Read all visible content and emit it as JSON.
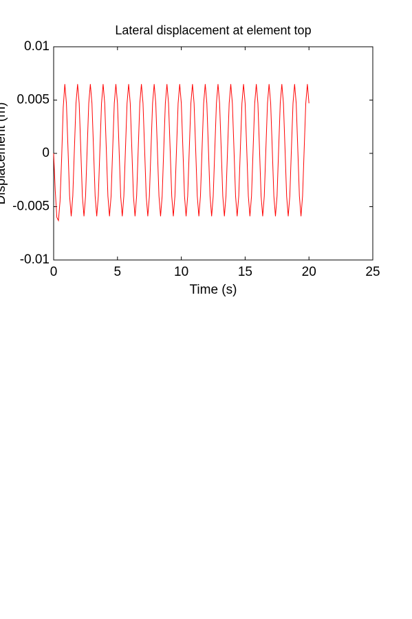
{
  "chart_data": {
    "type": "line",
    "title": "Lateral displacement at element top",
    "xlabel": "Time (s)",
    "ylabel": "Displacement (m)",
    "x": [
      0,
      0.125,
      0.25,
      0.375,
      0.5,
      0.625,
      0.75,
      0.875,
      1,
      1.125,
      1.25,
      1.375,
      1.5,
      1.625,
      1.75,
      1.875,
      2,
      2.125,
      2.25,
      2.375,
      2.5,
      2.625,
      2.75,
      2.875,
      3,
      3.125,
      3.25,
      3.375,
      3.5,
      3.625,
      3.75,
      3.875,
      4,
      4.125,
      4.25,
      4.375,
      4.5,
      4.625,
      4.75,
      4.875,
      5,
      5.125,
      5.25,
      5.375,
      5.5,
      5.625,
      5.75,
      5.875,
      6,
      6.125,
      6.25,
      6.375,
      6.5,
      6.625,
      6.75,
      6.875,
      7,
      7.125,
      7.25,
      7.375,
      7.5,
      7.625,
      7.75,
      7.875,
      8,
      8.125,
      8.25,
      8.375,
      8.5,
      8.625,
      8.75,
      8.875,
      9,
      9.125,
      9.25,
      9.375,
      9.5,
      9.625,
      9.75,
      9.875,
      10,
      10.125,
      10.25,
      10.375,
      10.5,
      10.625,
      10.75,
      10.875,
      11,
      11.125,
      11.25,
      11.375,
      11.5,
      11.625,
      11.75,
      11.875,
      12,
      12.125,
      12.25,
      12.375,
      12.5,
      12.625,
      12.75,
      12.875,
      13,
      13.125,
      13.25,
      13.375,
      13.5,
      13.625,
      13.75,
      13.875,
      14,
      14.125,
      14.25,
      14.375,
      14.5,
      14.625,
      14.75,
      14.875,
      15,
      15.125,
      15.25,
      15.375,
      15.5,
      15.625,
      15.75,
      15.875,
      16,
      16.125,
      16.25,
      16.375,
      16.5,
      16.625,
      16.75,
      16.875,
      17,
      17.125,
      17.25,
      17.375,
      17.5,
      17.625,
      17.75,
      17.875,
      18,
      18.125,
      18.25,
      18.375,
      18.5,
      18.625,
      18.75,
      18.875,
      19,
      19.125,
      19.25,
      19.375,
      19.5,
      19.625,
      19.75,
      19.875,
      20
    ],
    "values": [
      0,
      -0.0035,
      -0.006,
      -0.0063,
      -0.0045,
      -0.0005,
      0.0043,
      0.0065,
      0.0047,
      0.0004,
      -0.004,
      -0.0059,
      -0.004,
      0.0004,
      0.0047,
      0.0065,
      0.0047,
      0.0004,
      -0.004,
      -0.0059,
      -0.004,
      0.0004,
      0.0047,
      0.0065,
      0.0047,
      0.0004,
      -0.004,
      -0.0059,
      -0.004,
      0.0004,
      0.0047,
      0.0065,
      0.0047,
      0.0004,
      -0.004,
      -0.0059,
      -0.004,
      0.0004,
      0.0047,
      0.0065,
      0.0047,
      0.0004,
      -0.004,
      -0.0059,
      -0.004,
      0.0004,
      0.0047,
      0.0065,
      0.0047,
      0.0004,
      -0.004,
      -0.0059,
      -0.004,
      0.0004,
      0.0047,
      0.0065,
      0.0047,
      0.0004,
      -0.004,
      -0.0059,
      -0.004,
      0.0004,
      0.0047,
      0.0065,
      0.0047,
      0.0004,
      -0.004,
      -0.0059,
      -0.004,
      0.0004,
      0.0047,
      0.0065,
      0.0047,
      0.0004,
      -0.004,
      -0.0059,
      -0.004,
      0.0004,
      0.0047,
      0.0065,
      0.0047,
      0.0004,
      -0.004,
      -0.0059,
      -0.004,
      0.0004,
      0.0047,
      0.0065,
      0.0047,
      0.0004,
      -0.004,
      -0.0059,
      -0.004,
      0.0004,
      0.0047,
      0.0065,
      0.0047,
      0.0004,
      -0.004,
      -0.0059,
      -0.004,
      0.0004,
      0.0047,
      0.0065,
      0.0047,
      0.0004,
      -0.004,
      -0.0059,
      -0.004,
      0.0004,
      0.0047,
      0.0065,
      0.0047,
      0.0004,
      -0.004,
      -0.0059,
      -0.004,
      0.0004,
      0.0047,
      0.0065,
      0.0047,
      0.0004,
      -0.004,
      -0.0059,
      -0.004,
      0.0004,
      0.0047,
      0.0065,
      0.0047,
      0.0004,
      -0.004,
      -0.0059,
      -0.004,
      0.0004,
      0.0047,
      0.0065,
      0.0047,
      0.0004,
      -0.004,
      -0.0059,
      -0.004,
      0.0004,
      0.0047,
      0.0065,
      0.0047,
      0.0004,
      -0.004,
      -0.0059,
      -0.004,
      0.0004,
      0.0047,
      0.0065,
      0.0047,
      0.0004,
      -0.004,
      -0.0059,
      -0.004,
      0.0004,
      0.0047,
      0.0065,
      0.0047
    ],
    "color": "#ff0000",
    "xlim": [
      0,
      25
    ],
    "xticks": [
      0,
      5,
      10,
      15,
      20,
      25
    ],
    "ylim": [
      -0.01,
      0.01
    ],
    "yticks": [
      0.01,
      0.005,
      0,
      -0.005,
      -0.01
    ]
  }
}
